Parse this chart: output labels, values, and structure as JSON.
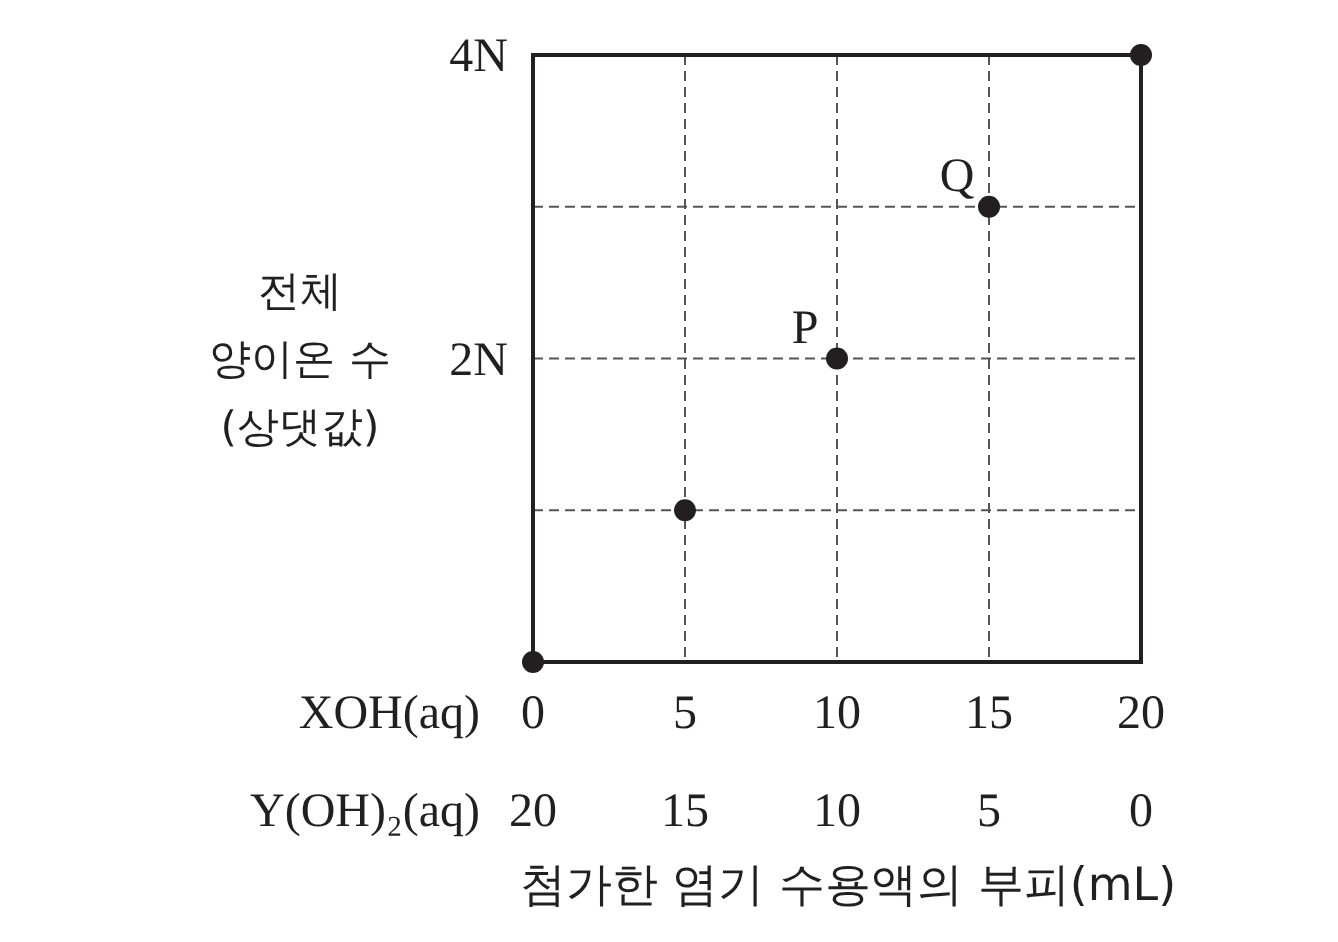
{
  "chart_data": {
    "type": "scatter",
    "xlabel": "XOH(aq)",
    "x2label": "Y(OH)₂(aq)",
    "ylabel": "전체\n양이온 수\n(상댓값)",
    "annotations": [
      {
        "text": "P",
        "x": 10,
        "y": 2
      },
      {
        "text": "Q",
        "x": 15,
        "y": 3
      },
      "첨가한 염기 수용액의 부피(mL)"
    ],
    "x": [
      0,
      5,
      10,
      15,
      20
    ],
    "values": [
      0,
      1,
      2,
      3,
      4
    ],
    "color": "#231f20",
    "marker": "circle",
    "xlim": [
      0,
      20
    ],
    "xticks": [
      0,
      5,
      10,
      15,
      20
    ],
    "x2lim": [
      20,
      0
    ],
    "x2ticks": [
      20,
      15,
      10,
      5,
      0
    ],
    "ylim": [
      0,
      4
    ],
    "yticks": [
      {
        "value": 1,
        "label": null
      },
      {
        "value": 2,
        "label": "2N"
      },
      {
        "value": 3,
        "label": null
      },
      {
        "value": 4,
        "label": "4N"
      }
    ],
    "grid": true
  }
}
